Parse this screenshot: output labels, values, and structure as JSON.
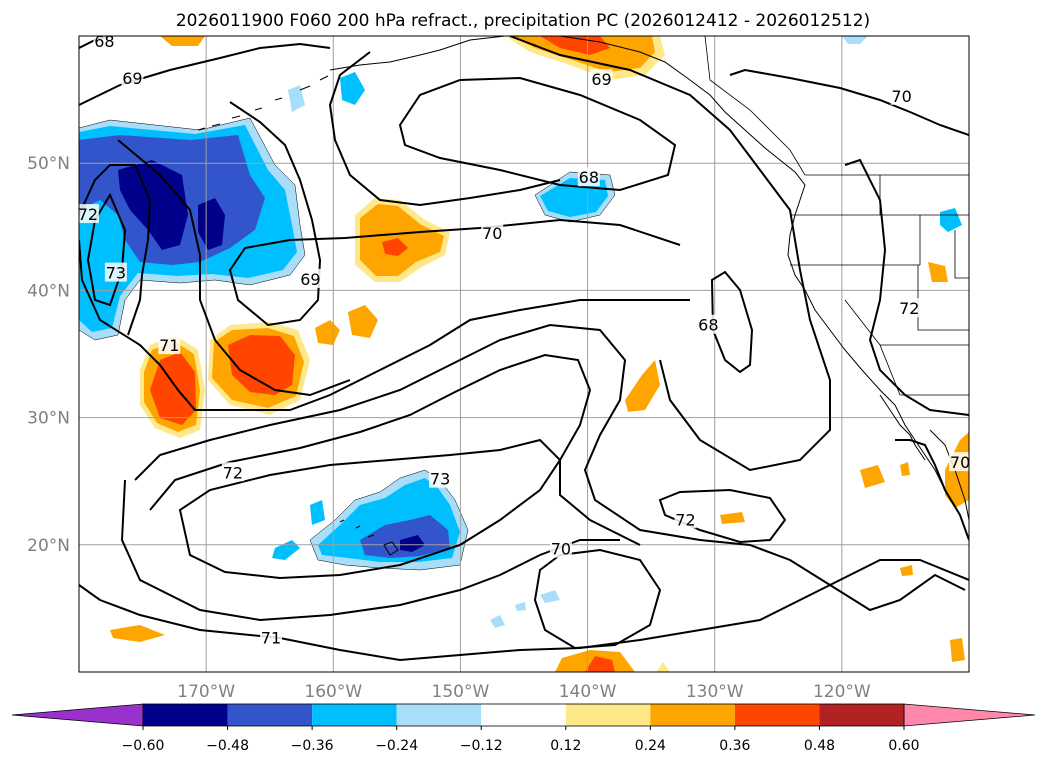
{
  "title": "2026011900 F060 200 hPa refract., precipitation PC (2026012412 - 2026012512)",
  "map": {
    "region": "North Pacific / western North America",
    "projection": "cylindrical",
    "lon_range_deg": [
      -180,
      -110
    ],
    "lat_range_deg": [
      10,
      60
    ],
    "grid": true,
    "grid_color": "#a0a0a0",
    "lat_labels": [
      {
        "lat": 50,
        "text": "50°N"
      },
      {
        "lat": 40,
        "text": "40°N"
      },
      {
        "lat": 30,
        "text": "30°N"
      },
      {
        "lat": 20,
        "text": "20°N"
      }
    ],
    "lon_labels": [
      {
        "lon": -170,
        "text": "170°W"
      },
      {
        "lon": -160,
        "text": "160°W"
      },
      {
        "lon": -150,
        "text": "150°W"
      },
      {
        "lon": -140,
        "text": "140°W"
      },
      {
        "lon": -130,
        "text": "130°W"
      },
      {
        "lon": -120,
        "text": "120°W"
      }
    ]
  },
  "contours": {
    "field": "200 hPa refractivity",
    "color": "#000000",
    "labels": [
      {
        "text": "68",
        "lon": -178,
        "lat": 59.6
      },
      {
        "text": "69",
        "lon": -175.8,
        "lat": 56.7
      },
      {
        "text": "72",
        "lon": -179.3,
        "lat": 46.0
      },
      {
        "text": "73",
        "lon": -177.1,
        "lat": 41.4
      },
      {
        "text": "71",
        "lon": -172.9,
        "lat": 35.7
      },
      {
        "text": "69",
        "lon": -161.8,
        "lat": 40.9
      },
      {
        "text": "70",
        "lon": -147.5,
        "lat": 44.5
      },
      {
        "text": "68",
        "lon": -139.9,
        "lat": 48.9
      },
      {
        "text": "69",
        "lon": -138.9,
        "lat": 56.6
      },
      {
        "text": "70",
        "lon": -115.3,
        "lat": 55.3
      },
      {
        "text": "68",
        "lon": -130.5,
        "lat": 37.3
      },
      {
        "text": "72",
        "lon": -114.7,
        "lat": 38.6
      },
      {
        "text": "70",
        "lon": -110.7,
        "lat": 26.5
      },
      {
        "text": "72",
        "lon": -167.9,
        "lat": 25.7
      },
      {
        "text": "73",
        "lon": -151.6,
        "lat": 25.2
      },
      {
        "text": "72",
        "lon": -132.3,
        "lat": 22.0
      },
      {
        "text": "70",
        "lon": -142.1,
        "lat": 19.7
      },
      {
        "text": "71",
        "lon": -164.9,
        "lat": 12.7
      }
    ]
  },
  "shading": {
    "field": "precipitation PC",
    "levels": [
      -0.6,
      -0.48,
      -0.36,
      -0.24,
      -0.12,
      0.12,
      0.24,
      0.36,
      0.48,
      0.6
    ],
    "colors": [
      "#9932cc",
      "#00008b",
      "#3355cc",
      "#00bfff",
      "#a8defa",
      "#ffffff",
      "#ffe88a",
      "#ffa500",
      "#ff4500",
      "#b22222",
      "#ff88aa"
    ]
  },
  "colorbar": {
    "tick_labels": [
      "−0.60",
      "−0.48",
      "−0.36",
      "−0.24",
      "−0.12",
      "0.12",
      "0.24",
      "0.36",
      "0.48",
      "0.60"
    ],
    "extend": "both"
  }
}
